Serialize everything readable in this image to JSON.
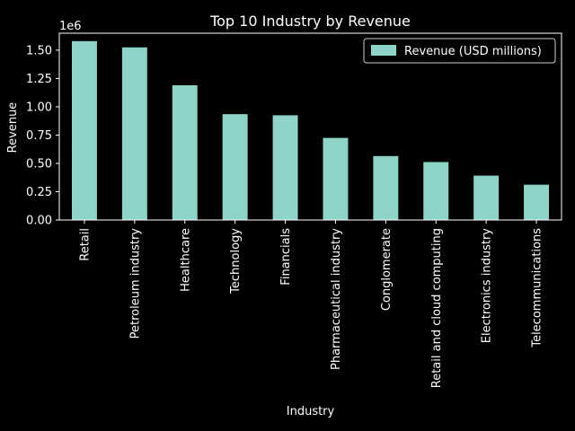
{
  "chart_data": {
    "type": "bar",
    "title": "Top 10 Industry by Revenue",
    "xlabel": "Industry",
    "ylabel": "Revenue",
    "y_multiplier": "1e6",
    "ylim": [
      0,
      1.65
    ],
    "yticks": [
      "0.00",
      "0.25",
      "0.50",
      "0.75",
      "1.00",
      "1.25",
      "1.50"
    ],
    "categories": [
      "Retail",
      "Petroleum industry",
      "Healthcare",
      "Technology",
      "Financials",
      "Pharmaceutical industry",
      "Conglomerate",
      "Retail and cloud computing",
      "Electronics industry",
      "Telecommunications"
    ],
    "series": [
      {
        "name": "Revenue (USD millions)",
        "values": [
          1.58,
          1.525,
          1.19,
          0.935,
          0.925,
          0.725,
          0.565,
          0.512,
          0.392,
          0.312
        ]
      }
    ],
    "legend_position": "top-right",
    "grid": false,
    "colors": {
      "bar": "#8dd3c7",
      "background": "#000000",
      "axis": "#ffffff",
      "text": "#ffffff"
    }
  }
}
